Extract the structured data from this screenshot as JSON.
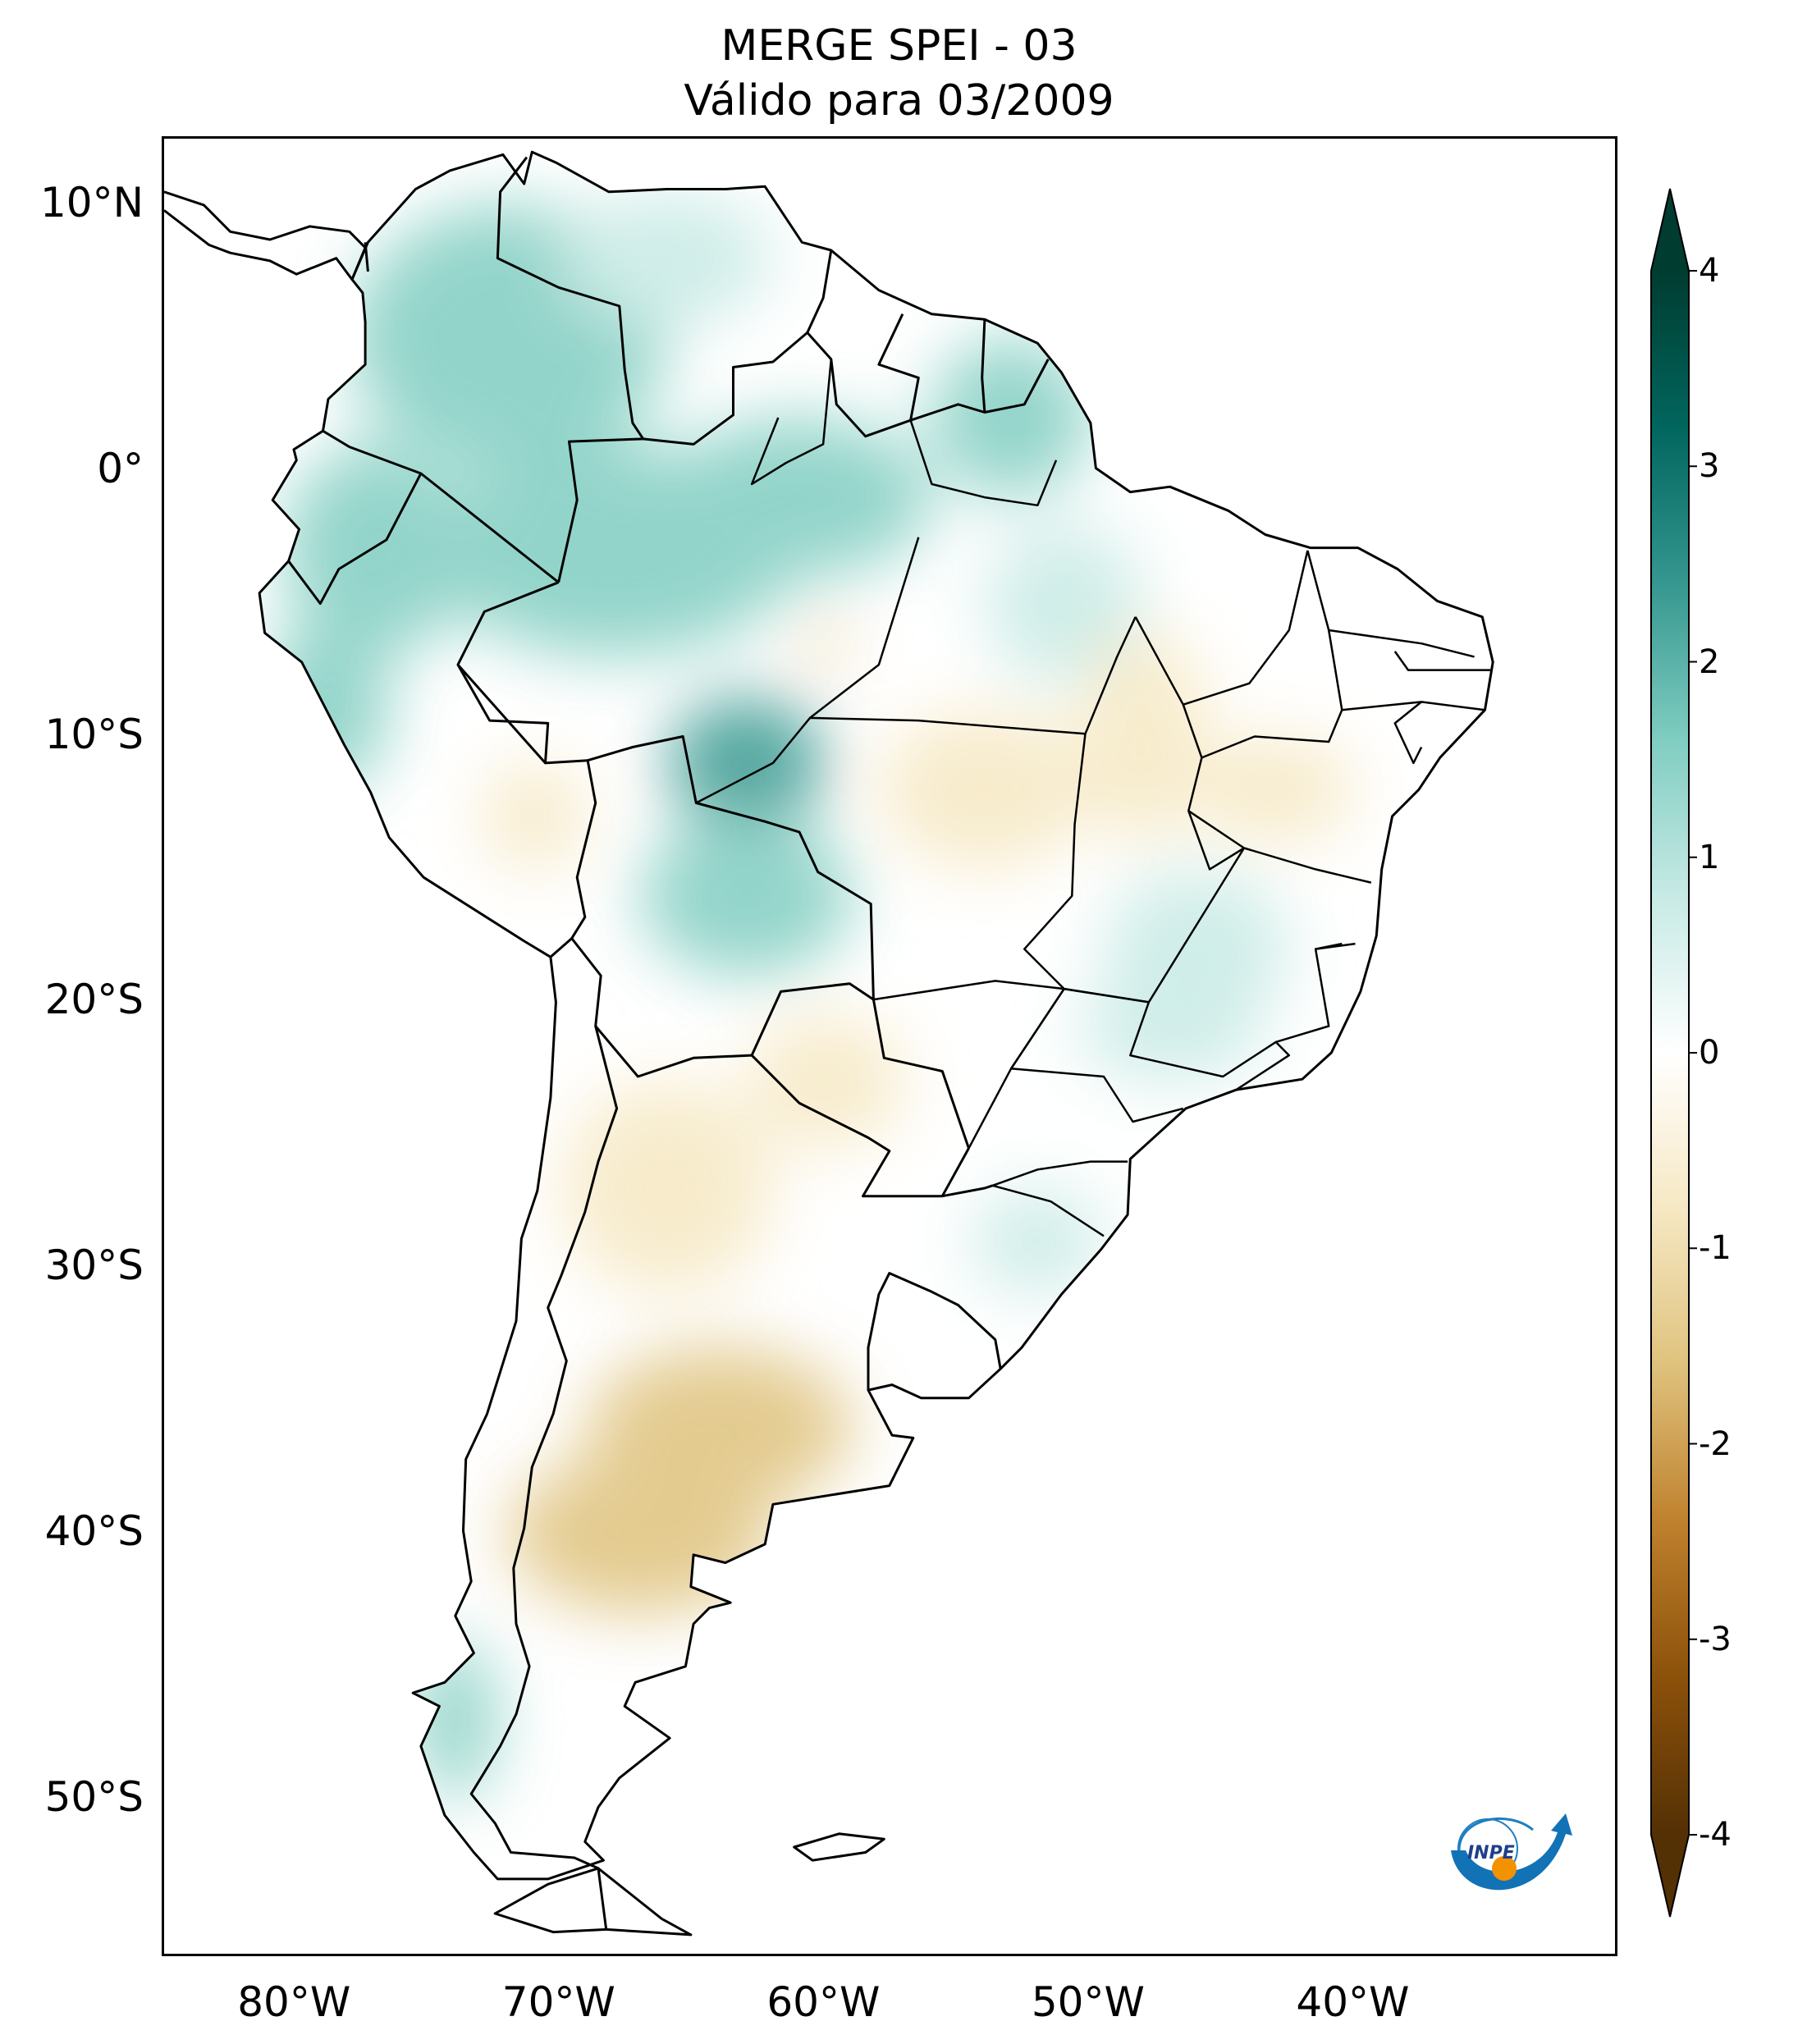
{
  "title": {
    "line1": "MERGE   SPEI - 03",
    "line2": "Válido para 03/2009"
  },
  "map": {
    "lon_range": [
      -85,
      -30
    ],
    "lat_range": [
      -56,
      12.5
    ],
    "lat_ticks": [
      {
        "value": 10,
        "label": "10°N"
      },
      {
        "value": 0,
        "label": "0°"
      },
      {
        "value": -10,
        "label": "10°S"
      },
      {
        "value": -20,
        "label": "20°S"
      },
      {
        "value": -30,
        "label": "30°S"
      },
      {
        "value": -40,
        "label": "40°S"
      },
      {
        "value": -50,
        "label": "50°S"
      }
    ],
    "lon_ticks": [
      {
        "value": -80,
        "label": "80°W"
      },
      {
        "value": -70,
        "label": "70°W"
      },
      {
        "value": -60,
        "label": "60°W"
      },
      {
        "value": -50,
        "label": "50°W"
      },
      {
        "value": -40,
        "label": "40°W"
      }
    ],
    "anomaly_regions": [
      {
        "name": "Colombia wet",
        "lon": -72,
        "lat": 5,
        "rx": 6,
        "ry": 5,
        "value": 1.6
      },
      {
        "name": "Venezuela wet",
        "lon": -66,
        "lat": 8,
        "rx": 4,
        "ry": 2.5,
        "value": 1.0
      },
      {
        "name": "Ecuador-Peru north wet",
        "lon": -77,
        "lat": -3,
        "rx": 3.5,
        "ry": 4,
        "value": 1.8
      },
      {
        "name": "Western Amazon wet",
        "lon": -68,
        "lat": -3,
        "rx": 7,
        "ry": 4,
        "value": 1.6
      },
      {
        "name": "Central Amazon wet",
        "lon": -61,
        "lat": -1,
        "rx": 5,
        "ry": 3,
        "value": 1.8
      },
      {
        "name": "Rondonia wet",
        "lon": -63,
        "lat": -11,
        "rx": 3,
        "ry": 2.5,
        "value": 2.2
      },
      {
        "name": "Bolivia wet",
        "lon": -63,
        "lat": -16,
        "rx": 4,
        "ry": 3,
        "value": 1.3
      },
      {
        "name": "Guianas Amapa wet",
        "lon": -53,
        "lat": 2,
        "rx": 3,
        "ry": 3,
        "value": 1.4
      },
      {
        "name": "Para wet",
        "lon": -51,
        "lat": -5,
        "rx": 3,
        "ry": 3,
        "value": 1.0
      },
      {
        "name": "Minas Goias wet",
        "lon": -46,
        "lat": -18,
        "rx": 3.5,
        "ry": 3,
        "value": 1.0
      },
      {
        "name": "Southeast Brazil wet",
        "lon": -47,
        "lat": -21,
        "rx": 3.5,
        "ry": 2,
        "value": 1.1
      },
      {
        "name": "Southern Brazil wet",
        "lon": -52,
        "lat": -29,
        "rx": 2.5,
        "ry": 2,
        "value": 0.9
      },
      {
        "name": "Patagonia fjords wet",
        "lon": -74,
        "lat": -47,
        "rx": 1.5,
        "ry": 3,
        "value": 1.8
      },
      {
        "name": "Peru coast wet",
        "lon": -79,
        "lat": -9,
        "rx": 2.5,
        "ry": 3,
        "value": 1.5
      },
      {
        "name": "Mato Grosso dry",
        "lon": -54,
        "lat": -12,
        "rx": 4,
        "ry": 3,
        "value": -1.2
      },
      {
        "name": "Tocantins dry",
        "lon": -48,
        "lat": -10,
        "rx": 2.5,
        "ry": 4,
        "value": -0.9
      },
      {
        "name": "Bahia dry",
        "lon": -43,
        "lat": -12,
        "rx": 3,
        "ry": 2,
        "value": -0.7
      },
      {
        "name": "Peru Bolivia Altiplano dry",
        "lon": -71,
        "lat": -13,
        "rx": 2,
        "ry": 2,
        "value": -0.8
      },
      {
        "name": "Chaco dry",
        "lon": -60,
        "lat": -23,
        "rx": 3,
        "ry": 2.5,
        "value": -0.8
      },
      {
        "name": "NW Argentina dry",
        "lon": -66,
        "lat": -27,
        "rx": 4,
        "ry": 4,
        "value": -0.9
      },
      {
        "name": "Pampas dry",
        "lon": -64,
        "lat": -36,
        "rx": 5,
        "ry": 3,
        "value": -1.5
      },
      {
        "name": "Northern Patagonia dry",
        "lon": -67,
        "lat": -40,
        "rx": 5,
        "ry": 3,
        "value": -1.9
      },
      {
        "name": "Amazon dry spot",
        "lon": -60,
        "lat": -6.5,
        "rx": 0.8,
        "ry": 0.7,
        "value": -1.8
      }
    ]
  },
  "colorbar": {
    "vmin": -4,
    "vmax": 4,
    "ticks": [
      {
        "value": 4,
        "label": "4"
      },
      {
        "value": 3,
        "label": "3"
      },
      {
        "value": 2,
        "label": "2"
      },
      {
        "value": 1,
        "label": "1"
      },
      {
        "value": 0,
        "label": "0"
      },
      {
        "value": -1,
        "label": "-1"
      },
      {
        "value": -2,
        "label": "-2"
      },
      {
        "value": -3,
        "label": "-3"
      },
      {
        "value": -4,
        "label": "-4"
      }
    ],
    "colors": [
      "#543005",
      "#8c510a",
      "#bf812d",
      "#dfc27d",
      "#f6e8c3",
      "#ffffff",
      "#c7eae5",
      "#80cdc1",
      "#35978f",
      "#01665e",
      "#003c30"
    ]
  },
  "logo": {
    "text": "INPE"
  }
}
